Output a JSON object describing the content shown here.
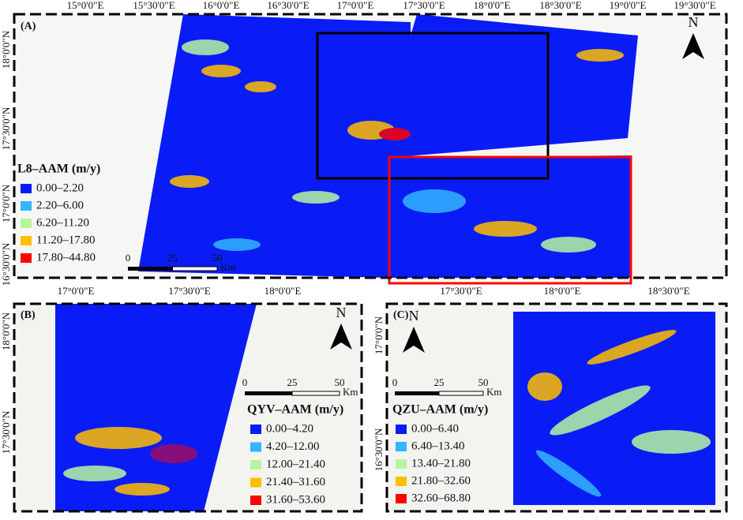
{
  "panels": [
    {
      "label": "(A)",
      "lon_labels": [
        "15°0'0\"E",
        "15°30'0\"E",
        "16°0'0\"E",
        "16°30'0\"E",
        "17°0'0\"E",
        "17°30'0\"E",
        "18°0'0\"E",
        "18°30'0\"E",
        "19°0'0\"E",
        "19°30'0\"E"
      ],
      "lat_labels": [
        "18°0'0\"N",
        "17°30'0\"N",
        "17°0'0\"N",
        "16°30'0\"N"
      ],
      "legend": {
        "title": "L8–AAM (m/y)",
        "items": [
          {
            "label": "0.00–2.20",
            "color": "#0a1cf5"
          },
          {
            "label": "2.20–6.00",
            "color": "#33b5ff"
          },
          {
            "label": "6.20–11.20",
            "color": "#b6f5a0"
          },
          {
            "label": "11.20–17.80",
            "color": "#ffbf00"
          },
          {
            "label": "17.80–44.80",
            "color": "#ff0000"
          }
        ]
      },
      "scale": [
        "0",
        "25",
        "50",
        "Km"
      ],
      "north": "N"
    },
    {
      "label": "(B)",
      "lon_labels": [
        "17°0'0\"E",
        "17°30'0\"E",
        "18°0'0\"E"
      ],
      "lat_labels": [
        "18°0'0\"N",
        "17°30'0\"N"
      ],
      "legend": {
        "title": "QYV–AAM (m/y)",
        "items": [
          {
            "label": "0.00–4.20",
            "color": "#0a1cf5"
          },
          {
            "label": "4.20–12.00",
            "color": "#33b5ff"
          },
          {
            "label": "12.00–21.40",
            "color": "#b6f5a0"
          },
          {
            "label": "21.40–31.60",
            "color": "#ffbf00"
          },
          {
            "label": "31.60–53.60",
            "color": "#ff0000"
          }
        ]
      },
      "scale": [
        "0",
        "25",
        "50",
        "Km"
      ],
      "north": "N"
    },
    {
      "label": "(C)",
      "lon_labels": [
        "17°30'0\"E",
        "18°0'0\"E",
        "18°30'0\"E"
      ],
      "lat_labels": [
        "17°0'0\"N",
        "16°30'0\"N"
      ],
      "legend": {
        "title": "QZU–AAM (m/y)",
        "items": [
          {
            "label": "0.00–6.40",
            "color": "#0a1cf5"
          },
          {
            "label": "6.40–13.40",
            "color": "#33b5ff"
          },
          {
            "label": "13.40–21.80",
            "color": "#b6f5a0"
          },
          {
            "label": "21.80–32.60",
            "color": "#ffbf00"
          },
          {
            "label": "32.60–68.80",
            "color": "#ff0000"
          }
        ]
      },
      "scale": [
        "0",
        "25",
        "50",
        "Km"
      ],
      "north": "N"
    }
  ]
}
